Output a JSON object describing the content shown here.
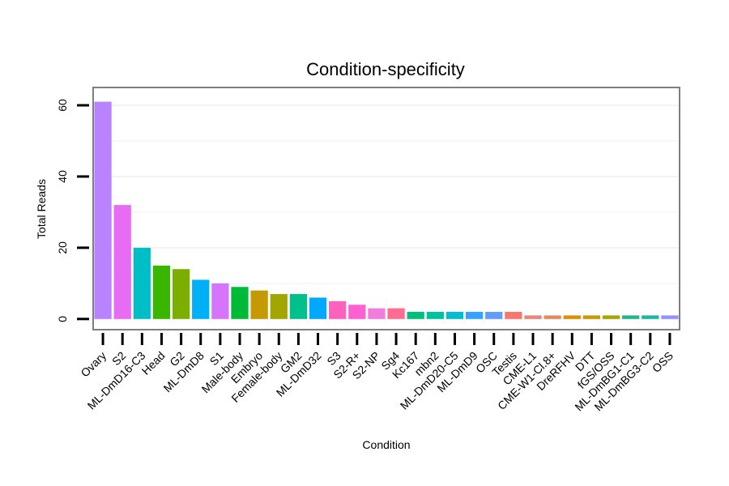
{
  "chart_data": {
    "type": "bar",
    "title": "Condition-specificity",
    "xlabel": "Condition",
    "ylabel": "Total Reads",
    "ylim": [
      -3,
      65
    ],
    "yticks": [
      0,
      20,
      40,
      60
    ],
    "grid": true,
    "legend": "none",
    "categories": [
      "Ovary",
      "S2",
      "ML-DmD16-C3",
      "Head",
      "G2",
      "ML-DmD8",
      "S1",
      "Male-body",
      "Embryo",
      "Female-body",
      "GM2",
      "ML-DmD32",
      "S3",
      "S2-R+",
      "S2-NP",
      "Sg4",
      "Kc167",
      "mbn2",
      "ML-DmD20-C5",
      "ML-DmD9",
      "OSC",
      "Testis",
      "CME-L1",
      "CME-W1-Cl.8+",
      "DreRFHV",
      "DTT",
      "fGS/OSS",
      "ML-DmBG1-C1",
      "ML-DmBG3-C2",
      "OSS"
    ],
    "values": [
      61,
      32,
      20,
      15,
      14,
      11,
      10,
      9,
      8,
      7,
      7,
      6,
      5,
      4,
      3,
      3,
      2,
      2,
      2,
      2,
      2,
      2,
      1,
      1,
      1,
      1,
      1,
      1,
      1,
      1
    ],
    "colors": [
      "#B983FF",
      "#E76BF3",
      "#00BFC4",
      "#39B600",
      "#7CAE00",
      "#00B0F6",
      "#D575FE",
      "#00BA38",
      "#C49A00",
      "#A3A500",
      "#00C08B",
      "#00A9FF",
      "#FF62BC",
      "#FD61D1",
      "#F17CDB",
      "#FF6C91",
      "#00BF7D",
      "#00C19F",
      "#00BDD0",
      "#35A2FF",
      "#619CFF",
      "#F8766D",
      "#E6857A",
      "#E18A5E",
      "#D89000",
      "#C99800",
      "#A4A500",
      "#22B58C",
      "#1BB7A0",
      "#9590FF"
    ]
  }
}
